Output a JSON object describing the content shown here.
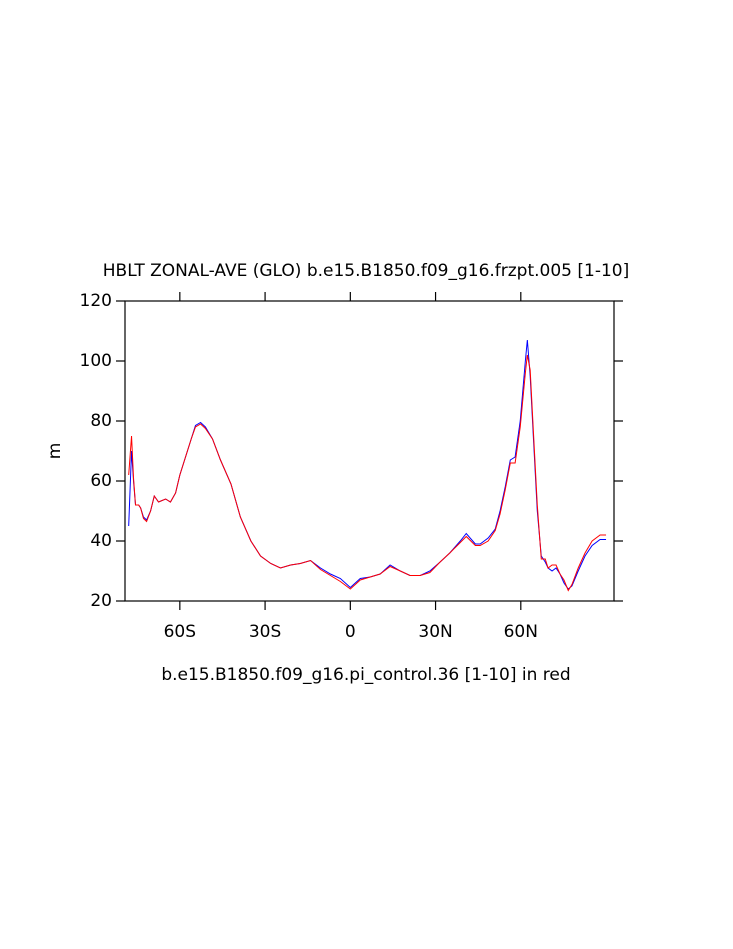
{
  "chart_data": {
    "type": "line",
    "title": "HBLT ZONAL-AVE (GLO) b.e15.B1850.f09_g16.frzpt.005 [1-10]",
    "subtitle": "b.e15.B1850.f09_g16.pi_control.36 [1-10] in red",
    "y_label": "m",
    "x": [
      -78,
      -77,
      -76.3,
      -75.6,
      -74.5,
      -73.8,
      -72.8,
      -71.7,
      -70.3,
      -69,
      -67.5,
      -65,
      -63.3,
      -61.5,
      -60,
      -58,
      -56,
      -54.5,
      -52.7,
      -51,
      -48.5,
      -45.7,
      -42,
      -38.7,
      -35,
      -31.6,
      -28,
      -24.6,
      -21,
      -17.6,
      -14,
      -10.5,
      -7,
      -3.5,
      0,
      3.5,
      7,
      10.5,
      14,
      17.6,
      21,
      24.6,
      28,
      31.6,
      35,
      38.7,
      40.8,
      44,
      45.7,
      48.5,
      51,
      52.7,
      54.5,
      56.3,
      58,
      59.8,
      61.6,
      62.3,
      63.3,
      64.4,
      65.8,
      67.2,
      68.6,
      69.6,
      71,
      72.4,
      73.8,
      75.2,
      76.7,
      78,
      80.2,
      82.6,
      85.1,
      87.9,
      90
    ],
    "series": [
      {
        "color": "#0000ff",
        "values": [
          45,
          70,
          60,
          52,
          52,
          51,
          48,
          47,
          50,
          55,
          53,
          54,
          53,
          56,
          62,
          68,
          74,
          78.5,
          79.5,
          78,
          74,
          67,
          59,
          48,
          40,
          35,
          32.5,
          31,
          32,
          32.5,
          33.5,
          31,
          29,
          27.5,
          24.5,
          27.5,
          28,
          29,
          32,
          30,
          28.5,
          28.5,
          30,
          33,
          36,
          40,
          42.5,
          39,
          39,
          41,
          44,
          50,
          58,
          67,
          68,
          80,
          100,
          107,
          95,
          75,
          50,
          35,
          33,
          31,
          30,
          31,
          29,
          26,
          24,
          25,
          30,
          35,
          38.5,
          40.5,
          40.5
        ]
      },
      {
        "color": "#ff0000",
        "values": [
          62,
          75,
          61,
          52,
          52,
          51,
          47.5,
          46.5,
          50,
          55,
          53,
          54,
          53,
          56,
          62,
          68,
          74,
          78,
          79,
          77.5,
          74,
          67,
          59,
          48,
          40,
          35,
          32.5,
          31,
          32,
          32.5,
          33.5,
          30.5,
          28.5,
          26.5,
          24,
          27,
          28,
          29,
          31.5,
          30,
          28.5,
          28.5,
          29.5,
          33,
          36,
          39.5,
          41.5,
          38.5,
          38.5,
          40,
          43.5,
          49,
          57,
          66,
          66,
          78,
          96,
          102,
          97,
          77,
          52,
          34,
          34,
          31,
          32,
          32,
          29,
          27,
          23.5,
          25.5,
          31,
          36,
          40,
          42,
          42
        ]
      }
    ],
    "xlim": [
      -79.3,
      92.8
    ],
    "ylim": [
      20,
      120
    ],
    "xticks": [
      {
        "value": -60,
        "label": "60S"
      },
      {
        "value": -30,
        "label": "30S"
      },
      0,
      {
        "value": 30,
        "label": "30N"
      },
      {
        "value": 60,
        "label": "60N"
      }
    ],
    "yticks": [
      20,
      40,
      60,
      80,
      100,
      120
    ]
  }
}
